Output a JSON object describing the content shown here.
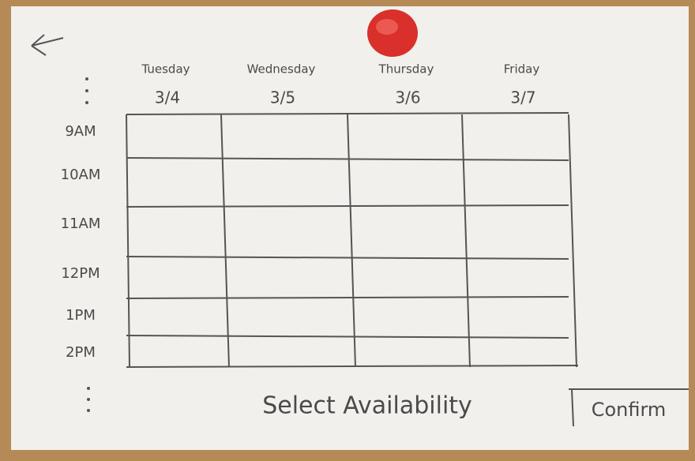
{
  "header": {
    "days": [
      {
        "name": "Tuesday",
        "date": "3/4"
      },
      {
        "name": "Wednesday",
        "date": "3/5"
      },
      {
        "name": "Thursday",
        "date": "3/6"
      },
      {
        "name": "Friday",
        "date": "3/7"
      }
    ]
  },
  "times": [
    "9AM",
    "10AM",
    "11AM",
    "12PM",
    "1PM",
    "2PM"
  ],
  "footer": {
    "title": "Select Availability",
    "button": "Confirm"
  }
}
